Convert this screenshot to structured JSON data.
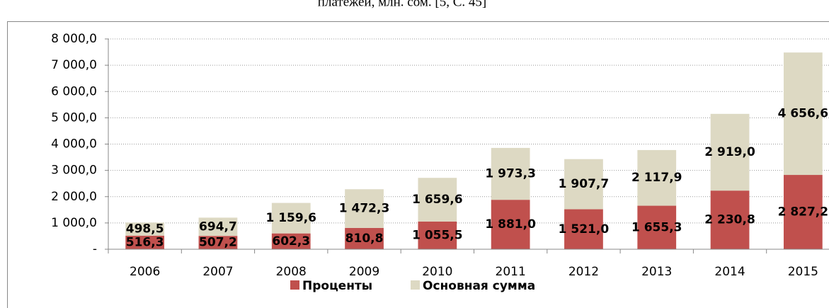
{
  "caption": "платежей, млн. сом. [5, С. 45]",
  "chart_data": {
    "type": "stacked_bar",
    "categories": [
      "2006",
      "2007",
      "2008",
      "2009",
      "2010",
      "2011",
      "2012",
      "2013",
      "2014",
      "2015"
    ],
    "series": [
      {
        "name": "Проценты",
        "color": "#c0504d",
        "values": [
          516.3,
          507.2,
          602.3,
          810.8,
          1055.5,
          1881.0,
          1521.0,
          1655.3,
          2230.8,
          2827.2
        ],
        "value_labels": [
          "516,3",
          "507,2",
          "602,3",
          "810,8",
          "1 055,5",
          "1 881,0",
          "1 521,0",
          "1 655,3",
          "2 230,8",
          "2 827,2"
        ]
      },
      {
        "name": "Основная сумма",
        "color": "#ddd9c3",
        "values": [
          498.5,
          694.7,
          1159.6,
          1472.3,
          1659.6,
          1973.3,
          1907.7,
          2117.9,
          2919.0,
          4656.6
        ],
        "value_labels": [
          "498,5",
          "694,7",
          "1 159,6",
          "1 472,3",
          "1 659,6",
          "1 973,3",
          "1 907,7",
          "2 117,9",
          "2 919,0",
          "4 656,6"
        ]
      }
    ],
    "ylim": [
      0,
      8000
    ],
    "yticks": [
      {
        "value": 0,
        "label": "-"
      },
      {
        "value": 1000,
        "label": "1 000,0"
      },
      {
        "value": 2000,
        "label": "2 000,0"
      },
      {
        "value": 3000,
        "label": "3 000,0"
      },
      {
        "value": 4000,
        "label": "4 000,0"
      },
      {
        "value": 5000,
        "label": "5 000,0"
      },
      {
        "value": 6000,
        "label": "6 000,0"
      },
      {
        "value": 7000,
        "label": "7 000,0"
      },
      {
        "value": 8000,
        "label": "8 000,0"
      }
    ],
    "grid": true,
    "legend": "bottom"
  }
}
